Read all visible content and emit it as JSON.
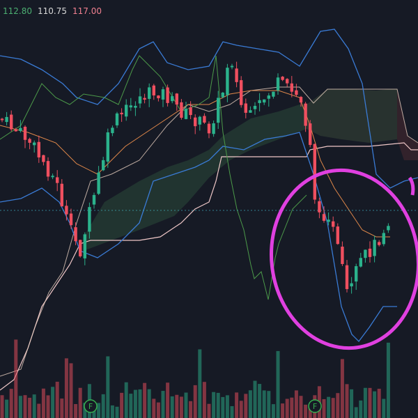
{
  "header": {
    "values": [
      "112.80",
      "110.75",
      "117.00"
    ]
  },
  "markers": [
    "F",
    "F"
  ]
}
